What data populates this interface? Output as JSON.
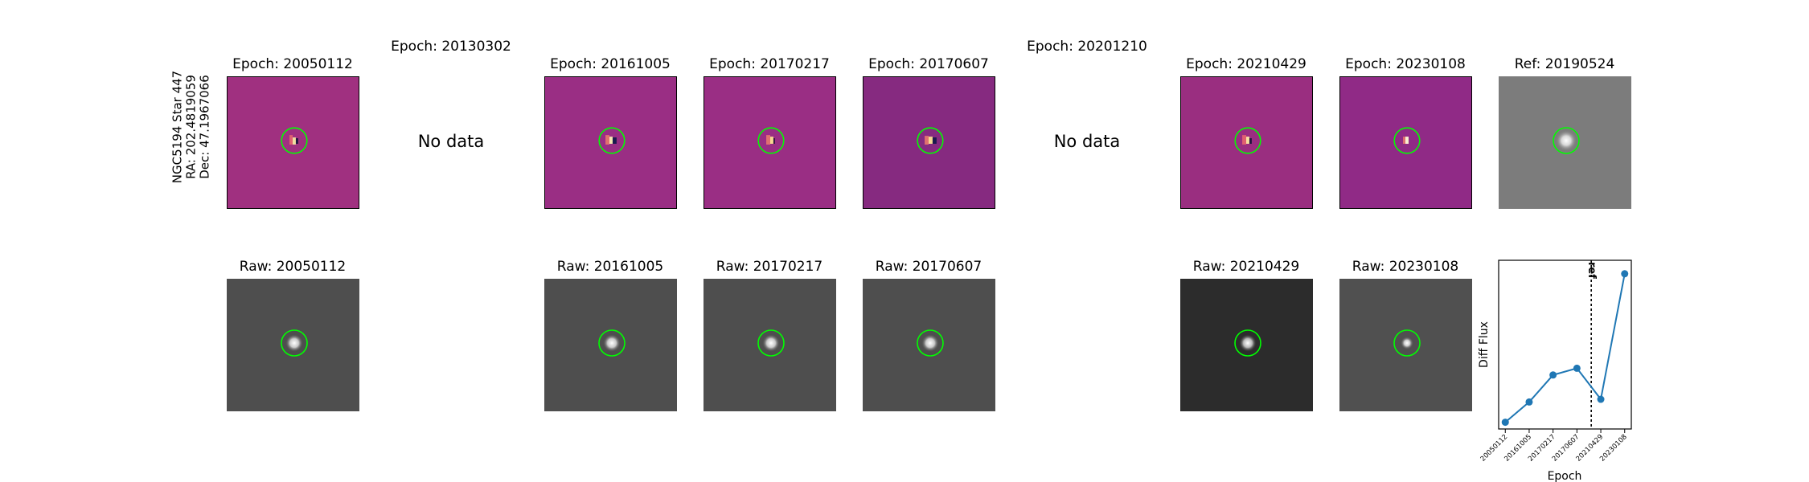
{
  "target": {
    "name": "NGC5194 Star 447",
    "ra": "RA: 202.4819059",
    "dec": "Dec: 47.1967066"
  },
  "no_data_text": "No data",
  "colors": {
    "marker_circle": "#00ff00",
    "diff_bg": [
      "#a03080",
      "#9a2e84",
      "#9a2e84",
      "#862a80",
      "#9a2e80",
      "#902a86"
    ],
    "raw_bg": [
      "#4e4e4e",
      "#4e4e4e",
      "#4e4e4e",
      "#4e4e4e",
      "#2c2c2c",
      "#505050"
    ],
    "ref_bg": "#7c7c7c",
    "line": "#1f77b4"
  },
  "diff_panels": [
    {
      "title": "Epoch: 20050112"
    },
    {
      "title": "Epoch: 20130302",
      "no_data": true
    },
    {
      "title": "Epoch: 20161005"
    },
    {
      "title": "Epoch: 20170217"
    },
    {
      "title": "Epoch: 20170607"
    },
    {
      "title": "Epoch: 20201210",
      "no_data": true
    },
    {
      "title": "Epoch: 20210429"
    },
    {
      "title": "Epoch: 20230108"
    },
    {
      "title": "Ref: 20190524",
      "reference": true
    }
  ],
  "raw_panels": [
    {
      "title": "Raw: 20050112"
    },
    {
      "title": "Raw: 20161005"
    },
    {
      "title": "Raw: 20170217"
    },
    {
      "title": "Raw: 20170607"
    },
    {
      "title": "Raw: 20210429"
    },
    {
      "title": "Raw: 20230108"
    }
  ],
  "chart_data": {
    "type": "line",
    "categories": [
      "20050112",
      "20161005",
      "20170217",
      "20170607",
      "20210429",
      "20230108"
    ],
    "values": [
      0.05,
      0.2,
      0.4,
      0.45,
      0.22,
      1.15
    ],
    "ylim": [
      0,
      1.25
    ],
    "xlabel": "Epoch",
    "ylabel": "Diff Flux",
    "reference_line": {
      "position_between": [
        "20170607",
        "20210429"
      ],
      "fraction": 0.6,
      "label": "ref"
    },
    "grid": false,
    "y_tick_labels_shown": false
  }
}
